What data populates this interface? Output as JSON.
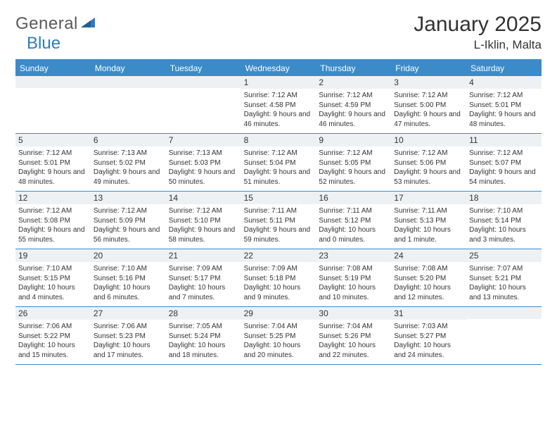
{
  "brand": {
    "general": "General",
    "blue": "Blue"
  },
  "title": "January 2025",
  "location": "L-Iklin, Malta",
  "colors": {
    "header_bg": "#3b8bc9",
    "header_text": "#ffffff",
    "border": "#3b8bc9",
    "daynum_bg": "#eef1f3",
    "body_text": "#333333",
    "logo_gray": "#5a5a5a",
    "logo_blue": "#2d7cc0",
    "background": "#ffffff"
  },
  "typography": {
    "title_fontsize": 30,
    "location_fontsize": 17,
    "dayhead_fontsize": 12,
    "daynum_fontsize": 12,
    "cell_fontsize": 10
  },
  "day_headers": [
    "Sunday",
    "Monday",
    "Tuesday",
    "Wednesday",
    "Thursday",
    "Friday",
    "Saturday"
  ],
  "weeks": [
    [
      {
        "n": "",
        "sr": "",
        "ss": "",
        "dl": ""
      },
      {
        "n": "",
        "sr": "",
        "ss": "",
        "dl": ""
      },
      {
        "n": "",
        "sr": "",
        "ss": "",
        "dl": ""
      },
      {
        "n": "1",
        "sr": "Sunrise: 7:12 AM",
        "ss": "Sunset: 4:58 PM",
        "dl": "Daylight: 9 hours and 46 minutes."
      },
      {
        "n": "2",
        "sr": "Sunrise: 7:12 AM",
        "ss": "Sunset: 4:59 PM",
        "dl": "Daylight: 9 hours and 46 minutes."
      },
      {
        "n": "3",
        "sr": "Sunrise: 7:12 AM",
        "ss": "Sunset: 5:00 PM",
        "dl": "Daylight: 9 hours and 47 minutes."
      },
      {
        "n": "4",
        "sr": "Sunrise: 7:12 AM",
        "ss": "Sunset: 5:01 PM",
        "dl": "Daylight: 9 hours and 48 minutes."
      }
    ],
    [
      {
        "n": "5",
        "sr": "Sunrise: 7:12 AM",
        "ss": "Sunset: 5:01 PM",
        "dl": "Daylight: 9 hours and 48 minutes."
      },
      {
        "n": "6",
        "sr": "Sunrise: 7:13 AM",
        "ss": "Sunset: 5:02 PM",
        "dl": "Daylight: 9 hours and 49 minutes."
      },
      {
        "n": "7",
        "sr": "Sunrise: 7:13 AM",
        "ss": "Sunset: 5:03 PM",
        "dl": "Daylight: 9 hours and 50 minutes."
      },
      {
        "n": "8",
        "sr": "Sunrise: 7:12 AM",
        "ss": "Sunset: 5:04 PM",
        "dl": "Daylight: 9 hours and 51 minutes."
      },
      {
        "n": "9",
        "sr": "Sunrise: 7:12 AM",
        "ss": "Sunset: 5:05 PM",
        "dl": "Daylight: 9 hours and 52 minutes."
      },
      {
        "n": "10",
        "sr": "Sunrise: 7:12 AM",
        "ss": "Sunset: 5:06 PM",
        "dl": "Daylight: 9 hours and 53 minutes."
      },
      {
        "n": "11",
        "sr": "Sunrise: 7:12 AM",
        "ss": "Sunset: 5:07 PM",
        "dl": "Daylight: 9 hours and 54 minutes."
      }
    ],
    [
      {
        "n": "12",
        "sr": "Sunrise: 7:12 AM",
        "ss": "Sunset: 5:08 PM",
        "dl": "Daylight: 9 hours and 55 minutes."
      },
      {
        "n": "13",
        "sr": "Sunrise: 7:12 AM",
        "ss": "Sunset: 5:09 PM",
        "dl": "Daylight: 9 hours and 56 minutes."
      },
      {
        "n": "14",
        "sr": "Sunrise: 7:12 AM",
        "ss": "Sunset: 5:10 PM",
        "dl": "Daylight: 9 hours and 58 minutes."
      },
      {
        "n": "15",
        "sr": "Sunrise: 7:11 AM",
        "ss": "Sunset: 5:11 PM",
        "dl": "Daylight: 9 hours and 59 minutes."
      },
      {
        "n": "16",
        "sr": "Sunrise: 7:11 AM",
        "ss": "Sunset: 5:12 PM",
        "dl": "Daylight: 10 hours and 0 minutes."
      },
      {
        "n": "17",
        "sr": "Sunrise: 7:11 AM",
        "ss": "Sunset: 5:13 PM",
        "dl": "Daylight: 10 hours and 1 minute."
      },
      {
        "n": "18",
        "sr": "Sunrise: 7:10 AM",
        "ss": "Sunset: 5:14 PM",
        "dl": "Daylight: 10 hours and 3 minutes."
      }
    ],
    [
      {
        "n": "19",
        "sr": "Sunrise: 7:10 AM",
        "ss": "Sunset: 5:15 PM",
        "dl": "Daylight: 10 hours and 4 minutes."
      },
      {
        "n": "20",
        "sr": "Sunrise: 7:10 AM",
        "ss": "Sunset: 5:16 PM",
        "dl": "Daylight: 10 hours and 6 minutes."
      },
      {
        "n": "21",
        "sr": "Sunrise: 7:09 AM",
        "ss": "Sunset: 5:17 PM",
        "dl": "Daylight: 10 hours and 7 minutes."
      },
      {
        "n": "22",
        "sr": "Sunrise: 7:09 AM",
        "ss": "Sunset: 5:18 PM",
        "dl": "Daylight: 10 hours and 9 minutes."
      },
      {
        "n": "23",
        "sr": "Sunrise: 7:08 AM",
        "ss": "Sunset: 5:19 PM",
        "dl": "Daylight: 10 hours and 10 minutes."
      },
      {
        "n": "24",
        "sr": "Sunrise: 7:08 AM",
        "ss": "Sunset: 5:20 PM",
        "dl": "Daylight: 10 hours and 12 minutes."
      },
      {
        "n": "25",
        "sr": "Sunrise: 7:07 AM",
        "ss": "Sunset: 5:21 PM",
        "dl": "Daylight: 10 hours and 13 minutes."
      }
    ],
    [
      {
        "n": "26",
        "sr": "Sunrise: 7:06 AM",
        "ss": "Sunset: 5:22 PM",
        "dl": "Daylight: 10 hours and 15 minutes."
      },
      {
        "n": "27",
        "sr": "Sunrise: 7:06 AM",
        "ss": "Sunset: 5:23 PM",
        "dl": "Daylight: 10 hours and 17 minutes."
      },
      {
        "n": "28",
        "sr": "Sunrise: 7:05 AM",
        "ss": "Sunset: 5:24 PM",
        "dl": "Daylight: 10 hours and 18 minutes."
      },
      {
        "n": "29",
        "sr": "Sunrise: 7:04 AM",
        "ss": "Sunset: 5:25 PM",
        "dl": "Daylight: 10 hours and 20 minutes."
      },
      {
        "n": "30",
        "sr": "Sunrise: 7:04 AM",
        "ss": "Sunset: 5:26 PM",
        "dl": "Daylight: 10 hours and 22 minutes."
      },
      {
        "n": "31",
        "sr": "Sunrise: 7:03 AM",
        "ss": "Sunset: 5:27 PM",
        "dl": "Daylight: 10 hours and 24 minutes."
      },
      {
        "n": "",
        "sr": "",
        "ss": "",
        "dl": ""
      }
    ]
  ]
}
